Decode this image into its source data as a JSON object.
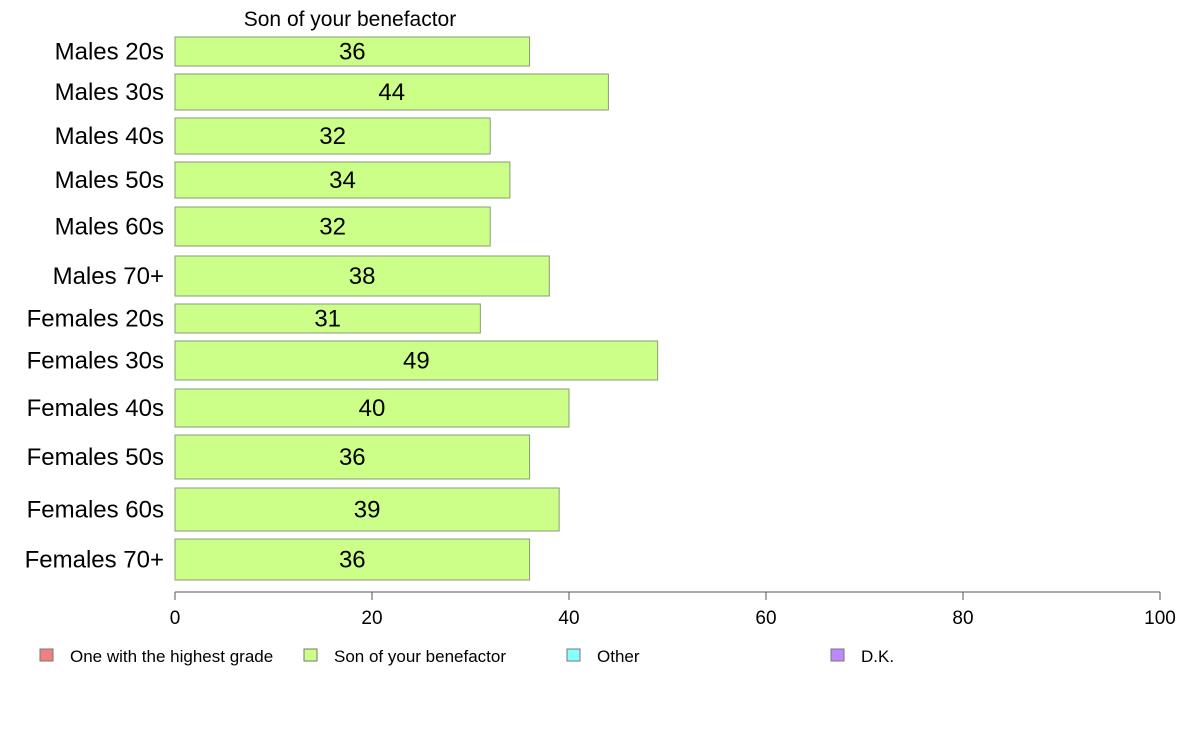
{
  "chart_data": {
    "type": "bar",
    "orientation": "horizontal",
    "series_title": "Son of your benefactor",
    "categories": [
      "Males 20s",
      "Males 30s",
      "Males 40s",
      "Males 50s",
      "Males 60s",
      "Males 70+",
      "Females 20s",
      "Females 30s",
      "Females 40s",
      "Females 50s",
      "Females 60s",
      "Females 70+"
    ],
    "series": [
      {
        "name": "Son of your benefactor",
        "color": "#ccff88",
        "values": [
          36,
          44,
          32,
          34,
          32,
          38,
          31,
          49,
          40,
          36,
          39,
          36
        ]
      }
    ],
    "xlim": [
      0,
      100
    ],
    "xticks": [
      "0",
      "20",
      "40",
      "60",
      "80",
      "100"
    ],
    "grid": false,
    "legend": {
      "position": "bottom",
      "items": [
        {
          "label": "One with the highest grade",
          "color": "#f08080"
        },
        {
          "label": "Son of your benefactor",
          "color": "#ccff88"
        },
        {
          "label": "Other",
          "color": "#88ffff"
        },
        {
          "label": "D.K.",
          "color": "#bb88ff"
        }
      ]
    }
  }
}
